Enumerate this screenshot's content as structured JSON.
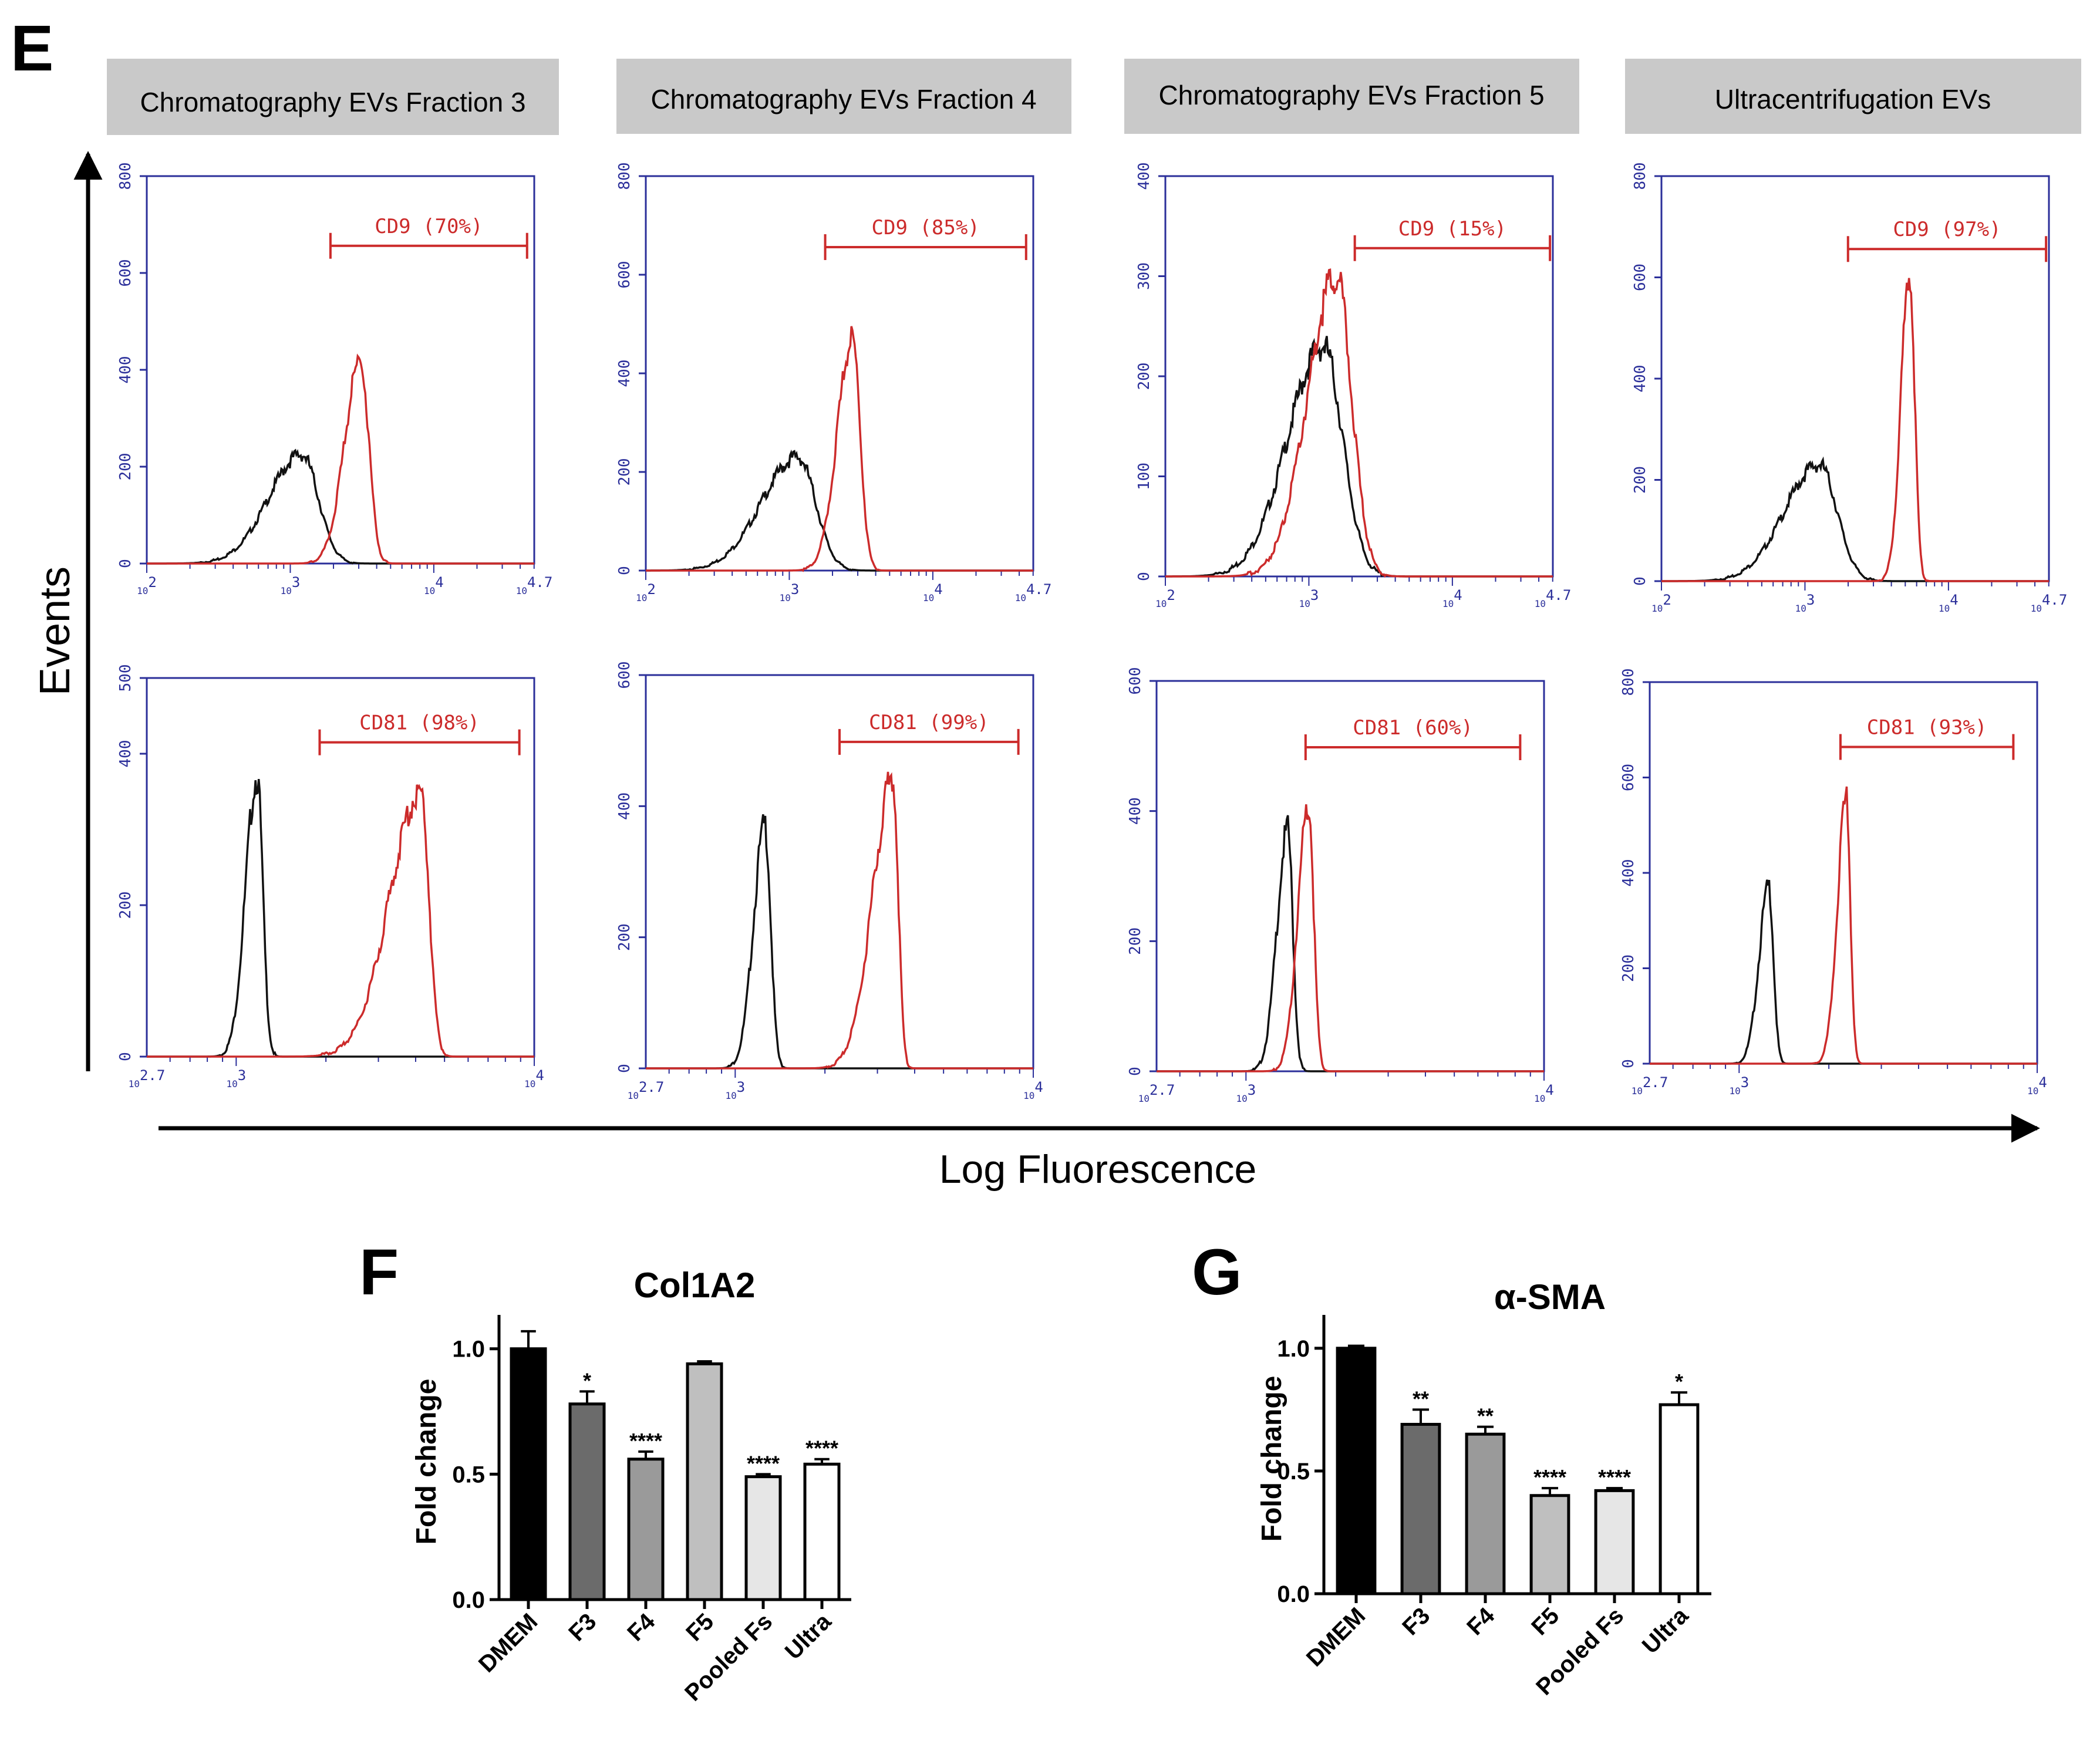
{
  "figure": {
    "panel_letters": {
      "e": "E",
      "f": "F",
      "g": "G"
    },
    "y_axis_label": "Events",
    "x_axis_label": "Log Fluorescence",
    "colors": {
      "control": "#111111",
      "stained": "#cc2b2b",
      "axis_frame": "#2b2f9a",
      "header_bg": "#c9c9c9"
    }
  },
  "chart_data": [
    {
      "type": "line",
      "title": "Chromatography EVs Fraction 3",
      "marker": "CD9",
      "gate_label": "CD9 (70%)",
      "x_scale": "log",
      "x_ticks": [
        "10^2",
        "10^3",
        "10^4",
        "10^4.7"
      ],
      "x_range": [
        2,
        4.7
      ],
      "y_ticks": [
        "0",
        "200",
        "400",
        "600",
        "800"
      ],
      "ylim": [
        0,
        800
      ],
      "gate": [
        3.28,
        4.65
      ],
      "series": [
        {
          "name": "control",
          "peak_log": 3.08,
          "peak_height": 225,
          "width": 0.3,
          "tail": 0.12
        },
        {
          "name": "CD9",
          "peak_log": 3.49,
          "peak_height": 420,
          "width": 0.15,
          "tail": 0.05
        }
      ]
    },
    {
      "type": "line",
      "title": "Chromatography EVs Fraction 4",
      "marker": "CD9",
      "gate_label": "CD9 (85%)",
      "x_scale": "log",
      "x_ticks": [
        "10^2",
        "10^3",
        "10^4",
        "10^4.7"
      ],
      "x_range": [
        2,
        4.7
      ],
      "y_ticks": [
        "0",
        "200",
        "400",
        "600",
        "800"
      ],
      "ylim": [
        0,
        800
      ],
      "gate": [
        3.25,
        4.65
      ],
      "series": [
        {
          "name": "control",
          "peak_log": 3.06,
          "peak_height": 230,
          "width": 0.32,
          "tail": 0.14
        },
        {
          "name": "CD9",
          "peak_log": 3.44,
          "peak_height": 470,
          "width": 0.14,
          "tail": 0.05
        }
      ]
    },
    {
      "type": "line",
      "title": "Chromatography EVs Fraction 5",
      "marker": "CD9",
      "gate_label": "CD9 (15%)",
      "x_scale": "log",
      "x_ticks": [
        "10^2",
        "10^3",
        "10^4",
        "10^4.7"
      ],
      "x_range": [
        2,
        4.7
      ],
      "y_ticks": [
        "0",
        "100",
        "200",
        "300",
        "400"
      ],
      "ylim": [
        0,
        400
      ],
      "gate": [
        3.32,
        4.68
      ],
      "series": [
        {
          "name": "control",
          "peak_log": 3.1,
          "peak_height": 230,
          "width": 0.35,
          "tail": 0.1
        },
        {
          "name": "CD9",
          "peak_log": 3.19,
          "peak_height": 300,
          "width": 0.28,
          "tail": 0.08
        }
      ]
    },
    {
      "type": "line",
      "title": "Ultracentrifugation EVs",
      "marker": "CD9",
      "gate_label": "CD9 (97%)",
      "x_scale": "log",
      "x_ticks": [
        "10^2",
        "10^3",
        "10^4",
        "10^4.7"
      ],
      "x_range": [
        2,
        4.7
      ],
      "y_ticks": [
        "0",
        "200",
        "400",
        "600",
        "800"
      ],
      "ylim": [
        0,
        800
      ],
      "gate": [
        3.3,
        4.68
      ],
      "series": [
        {
          "name": "control",
          "peak_log": 3.1,
          "peak_height": 230,
          "width": 0.32,
          "tail": 0.12
        },
        {
          "name": "CD9",
          "peak_log": 3.73,
          "peak_height": 610,
          "width": 0.09,
          "tail": 0.02
        }
      ]
    },
    {
      "type": "line",
      "title": "Chromatography EVs Fraction 3",
      "marker": "CD81",
      "gate_label": "CD81 (98%)",
      "x_scale": "log",
      "x_ticks": [
        "10^2.7",
        "10^3",
        "10^4"
      ],
      "x_range": [
        2.7,
        4
      ],
      "y_ticks": [
        "0",
        "200",
        "400",
        "500"
      ],
      "ylim": [
        0,
        500
      ],
      "gate": [
        3.28,
        3.95
      ],
      "series": [
        {
          "name": "control",
          "peak_log": 3.07,
          "peak_height": 370,
          "width": 0.05,
          "tail": 0.02
        },
        {
          "name": "CD81",
          "peak_log": 3.62,
          "peak_height": 350,
          "width": 0.07,
          "tail": 0.12
        }
      ]
    },
    {
      "type": "line",
      "title": "Chromatography EVs Fraction 4",
      "marker": "CD81",
      "gate_label": "CD81 (99%)",
      "x_scale": "log",
      "x_ticks": [
        "10^2.7",
        "10^3",
        "10^4"
      ],
      "x_range": [
        2.7,
        4
      ],
      "y_ticks": [
        "0",
        "200",
        "400",
        "600"
      ],
      "ylim": [
        0,
        600
      ],
      "gate": [
        3.35,
        3.95
      ],
      "series": [
        {
          "name": "control",
          "peak_log": 3.1,
          "peak_height": 370,
          "width": 0.05,
          "tail": 0.02
        },
        {
          "name": "CD81",
          "peak_log": 3.53,
          "peak_height": 440,
          "width": 0.045,
          "tail": 0.08
        }
      ]
    },
    {
      "type": "line",
      "title": "Chromatography EVs Fraction 5",
      "marker": "CD81",
      "gate_label": "CD81 (60%)",
      "x_scale": "log",
      "x_ticks": [
        "10^2.7",
        "10^3",
        "10^4"
      ],
      "x_range": [
        2.7,
        4
      ],
      "y_ticks": [
        "0",
        "200",
        "400",
        "600"
      ],
      "ylim": [
        0,
        600
      ],
      "gate": [
        3.2,
        3.92
      ],
      "series": [
        {
          "name": "control",
          "peak_log": 3.14,
          "peak_height": 370,
          "width": 0.045,
          "tail": 0.02
        },
        {
          "name": "CD81",
          "peak_log": 3.21,
          "peak_height": 410,
          "width": 0.045,
          "tail": 0.02
        }
      ]
    },
    {
      "type": "line",
      "title": "Ultracentrifugation EVs",
      "marker": "CD81",
      "gate_label": "CD81 (93%)",
      "x_scale": "log",
      "x_ticks": [
        "10^2.7",
        "10^3",
        "10^4"
      ],
      "x_range": [
        2.7,
        4
      ],
      "y_ticks": [
        "0",
        "200",
        "400",
        "600",
        "800"
      ],
      "ylim": [
        0,
        800
      ],
      "gate": [
        3.34,
        3.92
      ],
      "series": [
        {
          "name": "control",
          "peak_log": 3.1,
          "peak_height": 370,
          "width": 0.04,
          "tail": 0.02
        },
        {
          "name": "CD81",
          "peak_log": 3.36,
          "peak_height": 550,
          "width": 0.035,
          "tail": 0.02
        }
      ]
    },
    {
      "type": "bar",
      "title": "Col1A2",
      "ylabel": "Fold change",
      "categories": [
        "DMEM",
        "F3",
        "F4",
        "F5",
        "Pooled Fs",
        "Ultra"
      ],
      "values": [
        1.0,
        0.78,
        0.56,
        0.94,
        0.49,
        0.54
      ],
      "errors": [
        0.07,
        0.05,
        0.03,
        0.01,
        0.01,
        0.02
      ],
      "significance": [
        "",
        "*",
        "****",
        "",
        "****",
        "****"
      ],
      "bar_colors": [
        "#000000",
        "#6b6b6b",
        "#9a9a9a",
        "#bfbfbf",
        "#e6e6e6",
        "#ffffff"
      ],
      "ylim": [
        0,
        1.1
      ],
      "y_ticks": [
        "0.0",
        "0.5",
        "1.0"
      ]
    },
    {
      "type": "bar",
      "title": "α-SMA",
      "ylabel": "Fold change",
      "categories": [
        "DMEM",
        "F3",
        "F4",
        "F5",
        "Pooled Fs",
        "Ultra"
      ],
      "values": [
        1.0,
        0.69,
        0.65,
        0.4,
        0.42,
        0.77
      ],
      "errors": [
        0.01,
        0.06,
        0.03,
        0.03,
        0.01,
        0.05
      ],
      "significance": [
        "",
        "**",
        "**",
        "****",
        "****",
        "*"
      ],
      "bar_colors": [
        "#000000",
        "#6b6b6b",
        "#9a9a9a",
        "#bfbfbf",
        "#e6e6e6",
        "#ffffff"
      ],
      "ylim": [
        0,
        1.1
      ],
      "y_ticks": [
        "0.0",
        "0.5",
        "1.0"
      ]
    }
  ]
}
